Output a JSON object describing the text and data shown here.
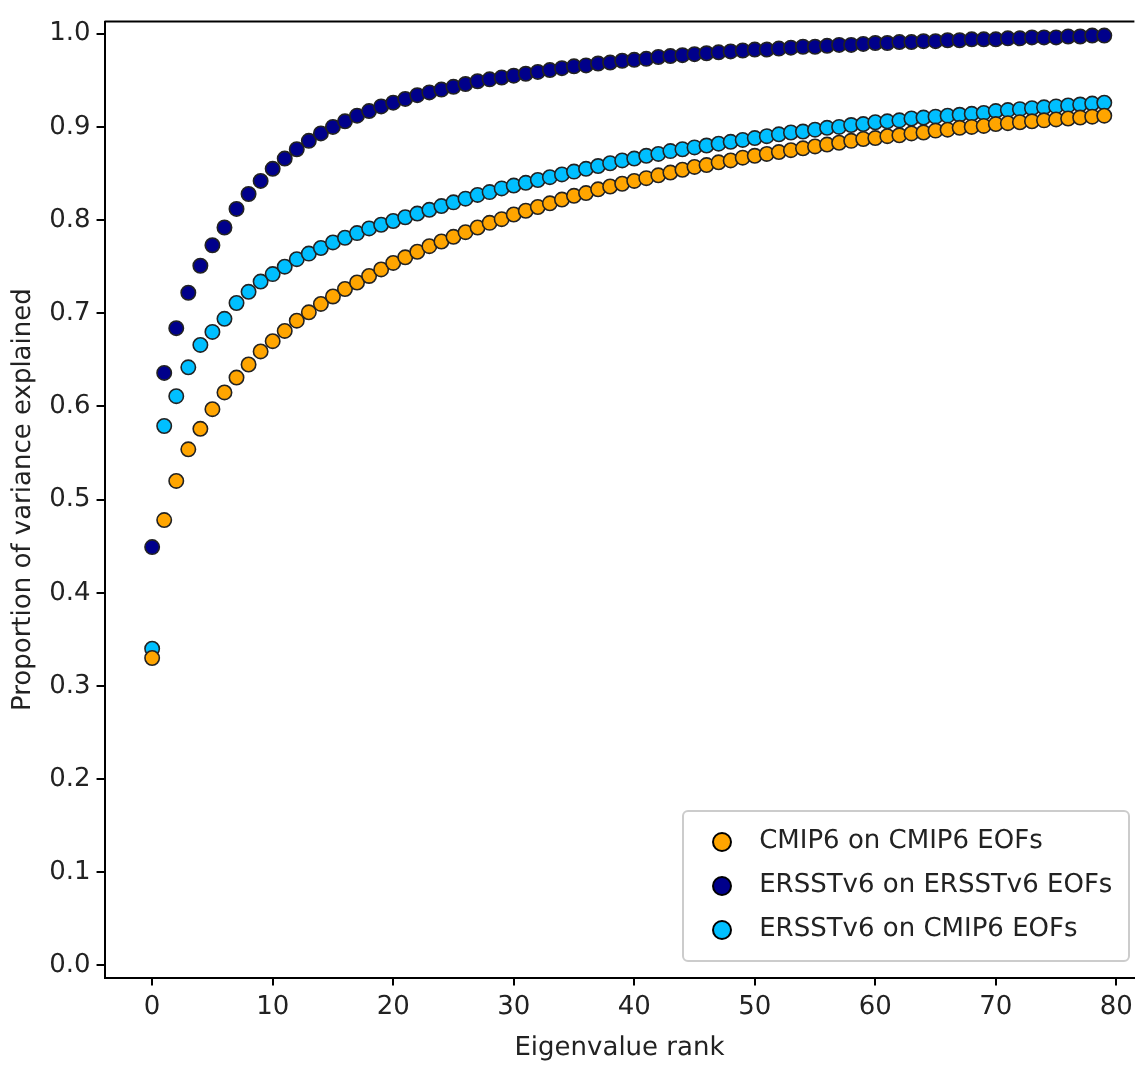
{
  "chart_data": {
    "type": "scatter",
    "xlabel": "Eigenvalue rank",
    "ylabel": "Proportion of variance explained",
    "x": [
      0,
      1,
      2,
      3,
      4,
      5,
      6,
      7,
      8,
      9,
      10,
      11,
      12,
      13,
      14,
      15,
      16,
      17,
      18,
      19,
      20,
      21,
      22,
      23,
      24,
      25,
      26,
      27,
      28,
      29,
      30,
      31,
      32,
      33,
      34,
      35,
      36,
      37,
      38,
      39,
      40,
      41,
      42,
      43,
      44,
      45,
      46,
      47,
      48,
      49,
      50,
      51,
      52,
      53,
      54,
      55,
      56,
      57,
      58,
      59,
      60,
      61,
      62,
      63,
      64,
      65,
      66,
      67,
      68,
      69,
      70,
      71,
      72,
      73,
      74,
      75,
      76,
      77,
      78,
      79
    ],
    "series": [
      {
        "name": "CMIP6 on CMIP6 EOFs",
        "color": "#ffa500",
        "values": [
          0.33,
          0.478,
          0.52,
          0.554,
          0.576,
          0.597,
          0.615,
          0.631,
          0.645,
          0.659,
          0.67,
          0.681,
          0.692,
          0.701,
          0.71,
          0.718,
          0.726,
          0.733,
          0.74,
          0.747,
          0.754,
          0.76,
          0.766,
          0.772,
          0.777,
          0.782,
          0.787,
          0.792,
          0.797,
          0.801,
          0.806,
          0.81,
          0.814,
          0.818,
          0.822,
          0.826,
          0.829,
          0.833,
          0.836,
          0.839,
          0.842,
          0.845,
          0.848,
          0.851,
          0.854,
          0.857,
          0.859,
          0.862,
          0.864,
          0.867,
          0.869,
          0.871,
          0.873,
          0.875,
          0.877,
          0.879,
          0.881,
          0.883,
          0.885,
          0.887,
          0.888,
          0.89,
          0.891,
          0.893,
          0.894,
          0.896,
          0.897,
          0.899,
          0.9,
          0.901,
          0.903,
          0.904,
          0.905,
          0.906,
          0.907,
          0.908,
          0.909,
          0.91,
          0.911,
          0.912
        ]
      },
      {
        "name": "ERSSTv6 on ERSSTv6 EOFs",
        "color": "#00008b",
        "values": [
          0.449,
          0.636,
          0.684,
          0.722,
          0.751,
          0.773,
          0.792,
          0.812,
          0.828,
          0.842,
          0.855,
          0.866,
          0.876,
          0.885,
          0.893,
          0.9,
          0.906,
          0.912,
          0.917,
          0.922,
          0.926,
          0.93,
          0.934,
          0.937,
          0.94,
          0.943,
          0.946,
          0.949,
          0.951,
          0.953,
          0.955,
          0.957,
          0.959,
          0.961,
          0.963,
          0.965,
          0.966,
          0.968,
          0.969,
          0.971,
          0.972,
          0.973,
          0.975,
          0.976,
          0.977,
          0.978,
          0.979,
          0.98,
          0.981,
          0.982,
          0.983,
          0.983,
          0.984,
          0.985,
          0.986,
          0.986,
          0.987,
          0.988,
          0.988,
          0.989,
          0.99,
          0.99,
          0.991,
          0.991,
          0.992,
          0.992,
          0.993,
          0.993,
          0.994,
          0.994,
          0.994,
          0.995,
          0.995,
          0.996,
          0.996,
          0.996,
          0.997,
          0.997,
          0.998,
          0.998
        ]
      },
      {
        "name": "ERSSTv6 on CMIP6 EOFs",
        "color": "#00bfff",
        "values": [
          0.34,
          0.579,
          0.611,
          0.642,
          0.666,
          0.68,
          0.694,
          0.711,
          0.723,
          0.734,
          0.742,
          0.75,
          0.758,
          0.764,
          0.77,
          0.776,
          0.781,
          0.786,
          0.791,
          0.795,
          0.799,
          0.803,
          0.807,
          0.811,
          0.815,
          0.819,
          0.823,
          0.827,
          0.83,
          0.834,
          0.837,
          0.84,
          0.843,
          0.846,
          0.849,
          0.852,
          0.855,
          0.858,
          0.861,
          0.864,
          0.866,
          0.869,
          0.871,
          0.874,
          0.876,
          0.878,
          0.88,
          0.882,
          0.884,
          0.886,
          0.888,
          0.89,
          0.892,
          0.894,
          0.895,
          0.897,
          0.899,
          0.9,
          0.902,
          0.903,
          0.905,
          0.906,
          0.907,
          0.909,
          0.91,
          0.911,
          0.912,
          0.913,
          0.914,
          0.915,
          0.917,
          0.918,
          0.919,
          0.92,
          0.921,
          0.922,
          0.923,
          0.924,
          0.925,
          0.926
        ]
      }
    ],
    "xlim": [
      -3.95,
      81.5
    ],
    "xticks": [
      0,
      10,
      20,
      30,
      40,
      50,
      60,
      70,
      80
    ],
    "ylim": [
      -0.013,
      1.013
    ],
    "yticks": [
      {
        "value": 0,
        "label": "0.0"
      },
      0.1,
      0.2,
      0.3,
      0.4,
      0.5,
      0.6,
      0.7,
      0.8,
      0.9,
      {
        "value": 1,
        "label": "1.0"
      }
    ],
    "marker": "circle",
    "legend": "bottom right",
    "grid": false
  }
}
